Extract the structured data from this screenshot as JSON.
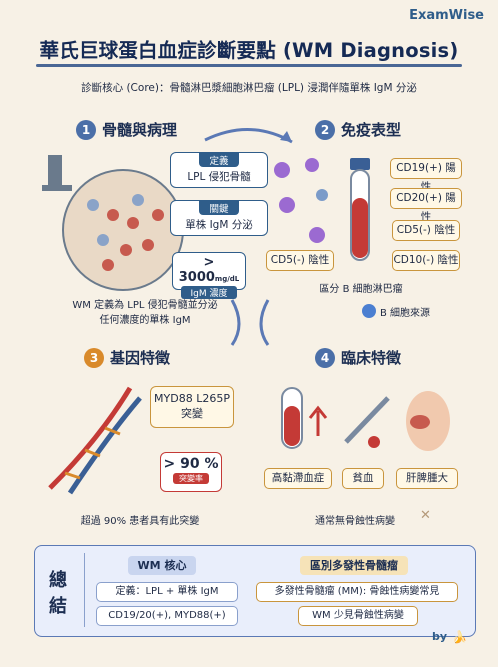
{
  "brand": "ExamWise",
  "title": "華氏巨球蛋白血症診斷要點 (WM Diagnosis)",
  "subtitle": "診斷核心 (Core)：骨髓淋巴漿細胞淋巴瘤 (LPL) 浸潤伴隨單株 IgM 分泌",
  "sections": [
    {
      "num": "1",
      "title": "骨髓與病理"
    },
    {
      "num": "2",
      "title": "免疫表型"
    },
    {
      "num": "3",
      "title": "基因特徵"
    },
    {
      "num": "4",
      "title": "臨床特徵"
    }
  ],
  "pathology": {
    "tag1_head": "定義",
    "tag1_body": "LPL 侵犯骨髓",
    "tag2_head": "關鍵",
    "tag2_body": "單株 IgM 分泌",
    "level_value": "> 3000",
    "level_unit": "mg/dL",
    "level_label": "IgM 濃度",
    "caption_line1": "WM 定義為 LPL 侵犯骨髓並分泌",
    "caption_line2": "任何濃度的單株 IgM"
  },
  "immuno": {
    "markers": [
      "CD19(+) 陽性",
      "CD20(+) 陽性",
      "CD5(-) 陰性",
      "CD10(-) 陰性",
      "CD5(-) 陰性"
    ],
    "caption": "區分 B 細胞淋巴瘤",
    "source": "B 細胞來源"
  },
  "genetic": {
    "mutation_line1": "MYD88 L265P",
    "mutation_line2": "突變",
    "rate_value": "> 90 %",
    "rate_label": "突變率",
    "caption": "超過 90% 患者具有此突變"
  },
  "clinical": {
    "items": [
      "高黏滯血症",
      "貧血",
      "肝脾腫大"
    ],
    "caption": "通常無骨蝕性病變"
  },
  "summary": {
    "label_top": "總",
    "label_bottom": "結",
    "left_head": "WM 核心",
    "left_items": [
      "定義：LPL + 單株 IgM",
      "CD19/20(+), MYD88(+)"
    ],
    "right_head": "區別多發性骨髓瘤",
    "right_items": [
      "多發性骨髓瘤 (MM): 骨蝕性病變常見",
      "WM 少見骨蝕性病變"
    ]
  },
  "signature": "by",
  "colors": {
    "navy": "#152a55",
    "blue": "#2f5d8a",
    "gold": "#c9953d",
    "red": "#c43a36"
  }
}
